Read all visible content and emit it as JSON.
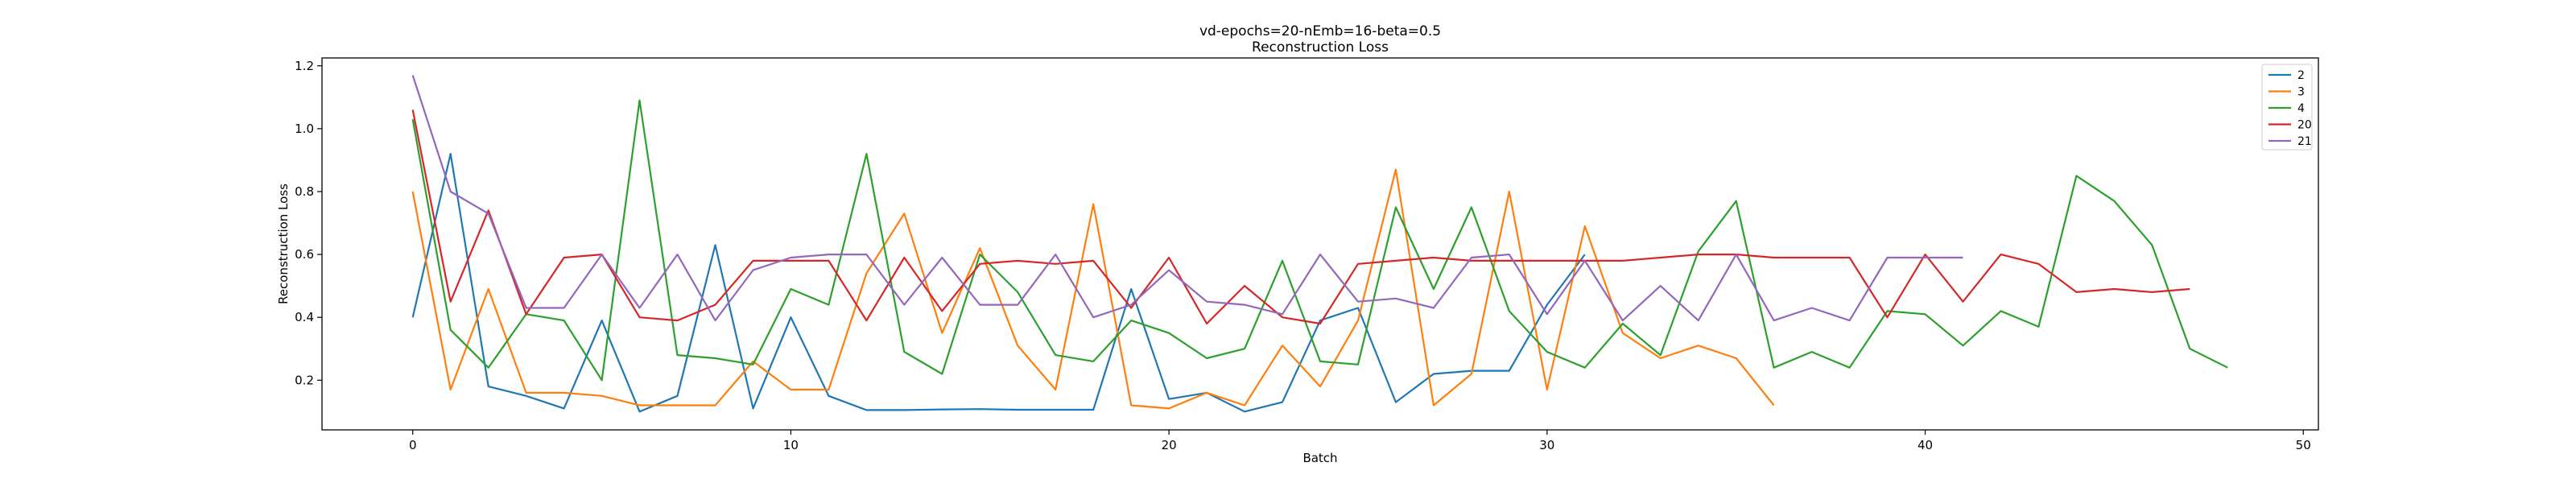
{
  "chart_data": {
    "type": "line",
    "title": "vd-epochs=20-nEmb=16-beta=0.5",
    "subtitle": "Reconstruction Loss",
    "xlabel": "Batch",
    "ylabel": "Reconstruction Loss",
    "xlim": [
      -2.4,
      50.4
    ],
    "ylim": [
      0.042,
      1.225
    ],
    "xticks": [
      0,
      10,
      20,
      30,
      40,
      50
    ],
    "yticks": [
      0.2,
      0.4,
      0.6,
      0.8,
      1.0,
      1.2
    ],
    "ytick_labels": [
      "0.2",
      "0.4",
      "0.6",
      "0.8",
      "1.0",
      "1.2"
    ],
    "grid": false,
    "legend_position": "top-right",
    "series": [
      {
        "name": "2",
        "color": "#1f77b4",
        "values": [
          0.4,
          0.92,
          0.18,
          0.15,
          0.11,
          0.39,
          0.1,
          0.15,
          0.63,
          0.11,
          0.4,
          0.15,
          0.105,
          0.105,
          0.107,
          0.108,
          0.106,
          0.106,
          0.106,
          0.49,
          0.14,
          0.16,
          0.1,
          0.13,
          0.39,
          0.43,
          0.13,
          0.22,
          0.23,
          0.23,
          0.44,
          0.6
        ]
      },
      {
        "name": "3",
        "color": "#ff7f0e",
        "values": [
          0.8,
          0.17,
          0.49,
          0.16,
          0.16,
          0.15,
          0.12,
          0.12,
          0.12,
          0.26,
          0.17,
          0.17,
          0.54,
          0.73,
          0.35,
          0.62,
          0.31,
          0.17,
          0.76,
          0.12,
          0.11,
          0.16,
          0.12,
          0.31,
          0.18,
          0.39,
          0.87,
          0.12,
          0.22,
          0.8,
          0.17,
          0.69,
          0.35,
          0.27,
          0.31,
          0.27,
          0.12
        ]
      },
      {
        "name": "4",
        "color": "#2ca02c",
        "values": [
          1.03,
          0.36,
          0.24,
          0.41,
          0.39,
          0.2,
          1.09,
          0.28,
          0.27,
          0.25,
          0.49,
          0.44,
          0.92,
          0.29,
          0.22,
          0.6,
          0.48,
          0.28,
          0.26,
          0.39,
          0.35,
          0.27,
          0.3,
          0.58,
          0.26,
          0.25,
          0.75,
          0.49,
          0.75,
          0.42,
          0.29,
          0.24,
          0.38,
          0.28,
          0.61,
          0.77,
          0.24,
          0.29,
          0.24,
          0.42,
          0.41,
          0.31,
          0.42,
          0.37,
          0.85,
          0.77,
          0.63,
          0.3,
          0.24
        ]
      },
      {
        "name": "20",
        "color": "#d62728",
        "values": [
          1.06,
          0.45,
          0.74,
          0.41,
          0.59,
          0.6,
          0.4,
          0.39,
          0.44,
          0.58,
          0.58,
          0.58,
          0.39,
          0.59,
          0.42,
          0.57,
          0.58,
          0.57,
          0.58,
          0.43,
          0.59,
          0.38,
          0.5,
          0.4,
          0.38,
          0.57,
          0.58,
          0.59,
          0.58,
          0.58,
          0.58,
          0.58,
          0.58,
          0.59,
          0.6,
          0.6,
          0.59,
          0.59,
          0.59,
          0.4,
          0.6,
          0.45,
          0.6,
          0.57,
          0.48,
          0.49,
          0.48,
          0.49
        ]
      },
      {
        "name": "21",
        "color": "#9467bd",
        "values": [
          1.17,
          0.8,
          0.73,
          0.43,
          0.43,
          0.6,
          0.43,
          0.6,
          0.39,
          0.55,
          0.59,
          0.6,
          0.6,
          0.44,
          0.59,
          0.44,
          0.44,
          0.6,
          0.4,
          0.44,
          0.55,
          0.45,
          0.44,
          0.41,
          0.6,
          0.45,
          0.46,
          0.43,
          0.59,
          0.6,
          0.41,
          0.58,
          0.39,
          0.5,
          0.39,
          0.6,
          0.39,
          0.43,
          0.39,
          0.59,
          0.59,
          0.59
        ]
      }
    ]
  }
}
